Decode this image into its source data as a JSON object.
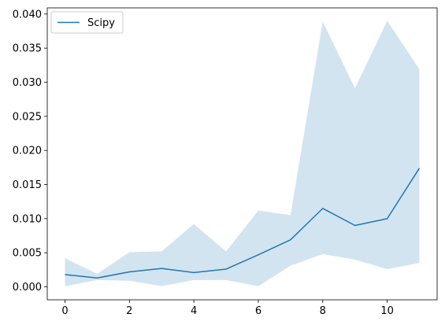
{
  "chart_data": {
    "type": "line",
    "title": "",
    "xlabel": "",
    "ylabel": "",
    "x": [
      0,
      1,
      2,
      3,
      4,
      5,
      6,
      7,
      8,
      9,
      10,
      11
    ],
    "series": [
      {
        "name": "Scipy",
        "color": "#1f77b4",
        "values": [
          0.0018,
          0.0013,
          0.0022,
          0.0027,
          0.0021,
          0.0026,
          0.0047,
          0.0069,
          0.0115,
          0.009,
          0.01,
          0.0174
        ],
        "band_lower": [
          0.0001,
          0.001,
          0.0009,
          0.0001,
          0.001,
          0.001,
          0.0001,
          0.0031,
          0.0048,
          0.004,
          0.0026,
          0.0035
        ],
        "band_upper": [
          0.0042,
          0.0019,
          0.0051,
          0.0052,
          0.0092,
          0.0052,
          0.0112,
          0.0105,
          0.0389,
          0.0291,
          0.039,
          0.0319
        ],
        "band_color": "#1f77b4",
        "band_opacity": 0.2
      }
    ],
    "xlim": [
      -0.55,
      11.55
    ],
    "ylim": [
      -0.0019,
      0.0409
    ],
    "xticks": [
      0,
      2,
      4,
      6,
      8,
      10
    ],
    "yticks": [
      0.0,
      0.005,
      0.01,
      0.015,
      0.02,
      0.025,
      0.03,
      0.035,
      0.04
    ],
    "ytick_labels": [
      "0.000",
      "0.005",
      "0.010",
      "0.015",
      "0.020",
      "0.025",
      "0.030",
      "0.035",
      "0.040"
    ],
    "xtick_labels": [
      "0",
      "2",
      "4",
      "6",
      "8",
      "10"
    ],
    "grid": false,
    "legend": {
      "position": "top-left",
      "entries": [
        "Scipy"
      ]
    }
  }
}
